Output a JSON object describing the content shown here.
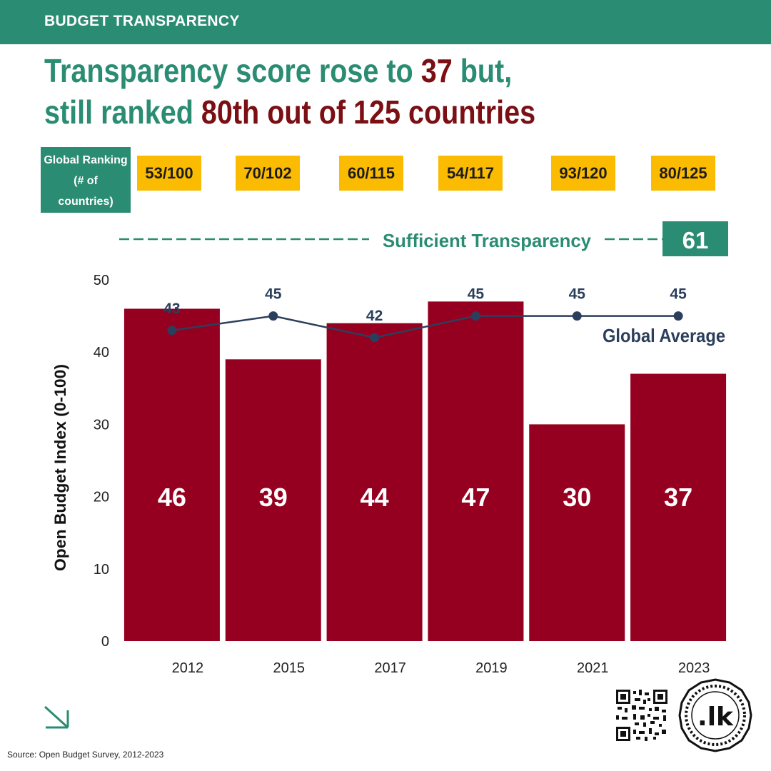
{
  "header": {
    "label": "BUDGET TRANSPARENCY"
  },
  "headline": {
    "p1": "Transparency score rose to ",
    "h1": "37",
    "p2": " but,",
    "p3": "still ranked ",
    "h2": "80th out of 125 countries"
  },
  "ranking": {
    "label_lines": [
      "Global Ranking",
      "(# of",
      "countries)"
    ],
    "values": [
      "53/100",
      "70/102",
      "60/115",
      "54/117",
      "93/120",
      "80/125"
    ]
  },
  "threshold": {
    "label": "Sufficient Transparency",
    "value": "61"
  },
  "chart_data": {
    "type": "bar",
    "categories": [
      "2012",
      "2015",
      "2017",
      "2019",
      "2021",
      "2023"
    ],
    "values": [
      46,
      39,
      44,
      47,
      30,
      37
    ],
    "value_labels": [
      "46",
      "39",
      "44",
      "47",
      "30",
      "37"
    ],
    "series": [
      {
        "name": "Global Average",
        "type": "line",
        "values": [
          43,
          45,
          42,
          45,
          45,
          45
        ]
      }
    ],
    "average_point_labels": [
      "43",
      "45",
      "42",
      "45",
      "45",
      "45"
    ],
    "ylabel": "Open Budget Index (0-100)",
    "ylim": [
      0,
      50
    ],
    "yticks": [
      "0",
      "10",
      "20",
      "30",
      "40",
      "50"
    ],
    "grid": false,
    "colors": {
      "bar": "#960020",
      "line": "#2b3f5c",
      "accent": "#2a8c72",
      "highlight": "#fbbb00"
    }
  },
  "footer": {
    "source": "Source: Open Budget Survey, 2012-2023",
    "logo_text": ".lk"
  }
}
